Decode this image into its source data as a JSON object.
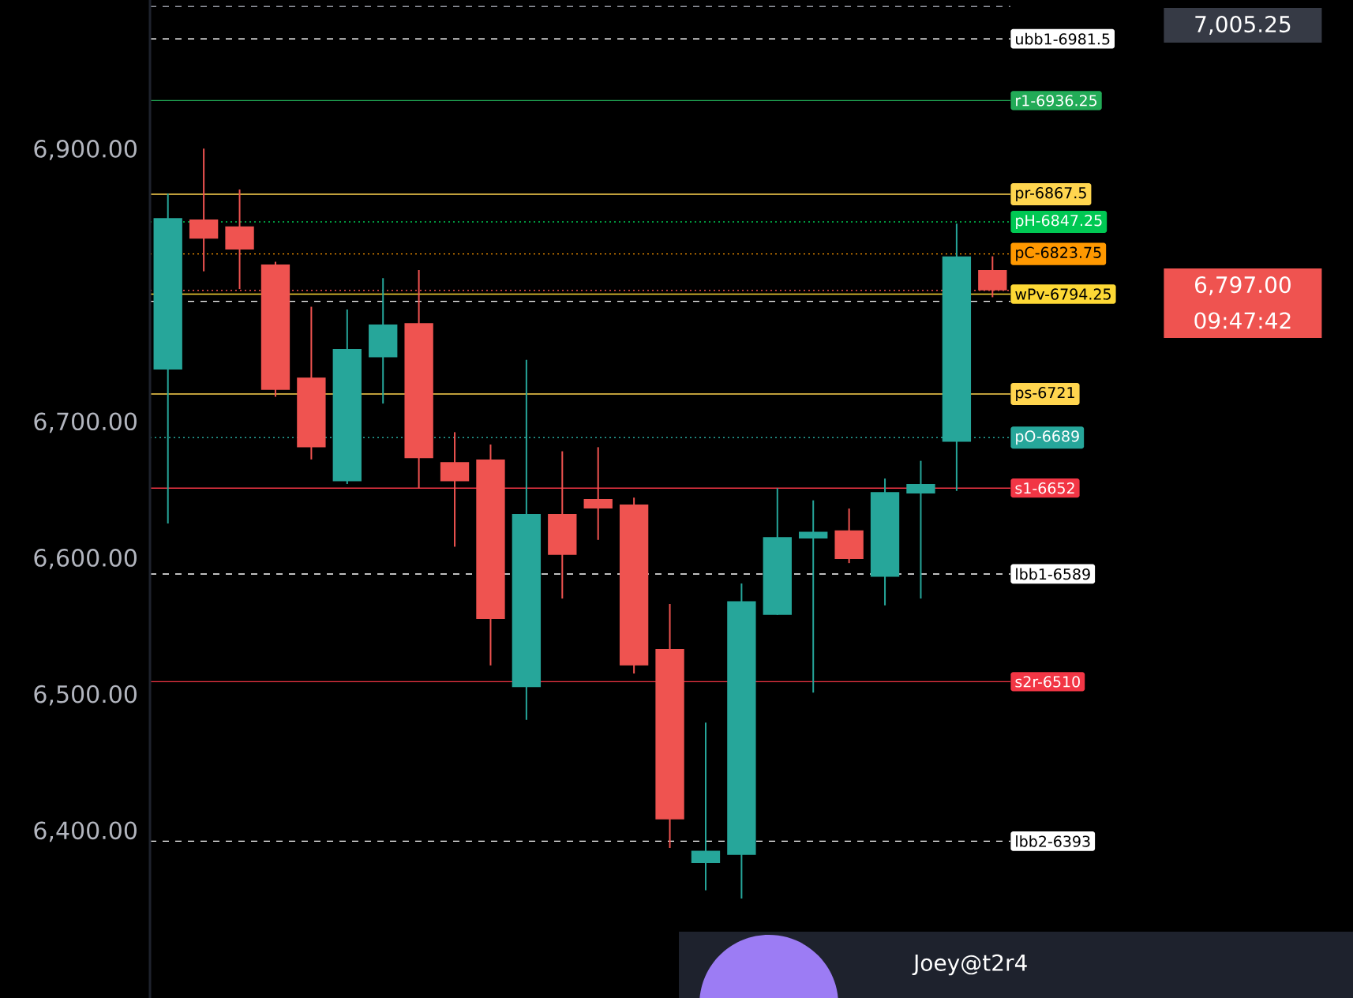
{
  "chart_data": {
    "type": "candlestick",
    "categories": [
      null,
      null,
      null,
      null,
      null,
      null,
      null,
      null,
      null,
      null,
      null,
      null,
      null,
      null,
      null,
      null,
      null,
      null,
      null,
      null,
      null,
      null,
      null,
      null
    ],
    "ohlc": [
      [
        6739,
        6868,
        6626,
        6850
      ],
      [
        6849,
        6901,
        6811,
        6835
      ],
      [
        6844,
        6871,
        6798,
        6827
      ],
      [
        6816,
        6818,
        6719,
        6724
      ],
      [
        6733,
        6785,
        6673,
        6682
      ],
      [
        6657,
        6783,
        6655,
        6754
      ],
      [
        6748,
        6806,
        6714,
        6772
      ],
      [
        6773,
        6812,
        6652,
        6674
      ],
      [
        6671,
        6693,
        6609,
        6657
      ],
      [
        6673,
        6684,
        6522,
        6556
      ],
      [
        6506,
        6746,
        6482,
        6633
      ],
      [
        6633,
        6679,
        6571,
        6603
      ],
      [
        6644,
        6682,
        6614,
        6637
      ],
      [
        6640,
        6645,
        6516,
        6522
      ],
      [
        6534,
        6567,
        6388,
        6409
      ],
      [
        6377,
        6480,
        6357,
        6386
      ],
      [
        6383,
        6582,
        6351,
        6569
      ],
      [
        6559,
        6652,
        6559,
        6616
      ],
      [
        6615,
        6643,
        6502,
        6620
      ],
      [
        6621,
        6637,
        6597,
        6600
      ],
      [
        6587,
        6659,
        6566,
        6649
      ],
      [
        6648,
        6672,
        6571,
        6655
      ],
      [
        6686,
        6846,
        6650,
        6822
      ],
      [
        6812,
        6822,
        6792,
        6797
      ]
    ],
    "colors": [
      "#26a69a",
      "#ef5350",
      "#ef5350",
      "#ef5350",
      "#ef5350",
      "#26a69a",
      "#26a69a",
      "#ef5350",
      "#ef5350",
      "#ef5350",
      "#26a69a",
      "#ef5350",
      "#ef5350",
      "#ef5350",
      "#ef5350",
      "#26a69a",
      "#26a69a",
      "#26a69a",
      "#26a69a",
      "#ef5350",
      "#26a69a",
      "#26a69a",
      "#26a69a",
      "#ef5350"
    ],
    "ylim": [
      6278,
      7010
    ],
    "yticks": [
      {
        "value": 6400,
        "label": "6,400.00"
      },
      {
        "value": 6500,
        "label": "6,500.00"
      },
      {
        "value": 6600,
        "label": "6,600.00"
      },
      {
        "value": 6700,
        "label": "6,700.00"
      },
      {
        "value": 6900,
        "label": "6,900.00"
      }
    ],
    "tick_labels": "y",
    "grid": false,
    "ref_lines": [
      {
        "axis": "y",
        "value": 7005.25,
        "color": "#9598a1",
        "line_style": "dashed"
      },
      {
        "axis": "y",
        "value": 6981.5,
        "label": "ubb1-6981.5",
        "color": "#ffffff",
        "line_style": "dashed"
      },
      {
        "axis": "y",
        "value": 6936.25,
        "label": "r1-6936.25",
        "color": "#22ab57",
        "line_style": "solid"
      },
      {
        "axis": "y",
        "value": 6867.5,
        "label": "pr-6867.5",
        "color": "#ffd54f",
        "line_style": "solid"
      },
      {
        "axis": "y",
        "value": 6847.25,
        "label": "pH-6847.25",
        "color": "#00c853",
        "line_style": "dotted"
      },
      {
        "axis": "y",
        "value": 6823.75,
        "label": "pC-6823.75",
        "color": "#ff9800",
        "line_style": "dotted"
      },
      {
        "axis": "y",
        "value": 6797,
        "color": "#ef5350",
        "line_style": "dotted"
      },
      {
        "axis": "y",
        "value": 6789,
        "color": "#ffffff",
        "line_style": "dashed"
      },
      {
        "axis": "y",
        "value": 6794.25,
        "label": "wPv-6794.25",
        "color": "#fdd835",
        "line_style": "solid"
      },
      {
        "axis": "y",
        "value": 6721,
        "label": "ps-6721",
        "color": "#ffd54f",
        "line_style": "solid"
      },
      {
        "axis": "y",
        "value": 6689,
        "label": "pO-6689",
        "color": "#26a69a",
        "line_style": "dotted"
      },
      {
        "axis": "y",
        "value": 6652,
        "label": "s1-6652",
        "color": "#f23645",
        "line_style": "solid"
      },
      {
        "axis": "y",
        "value": 6589,
        "label": "lbb1-6589",
        "color": "#ffffff",
        "line_style": "dashed"
      },
      {
        "axis": "y",
        "value": 6510,
        "label": "s2r-6510",
        "color": "#f23645",
        "line_style": "solid"
      },
      {
        "axis": "y",
        "value": 6393,
        "label": "lbb2-6393",
        "color": "#ffffff",
        "line_style": "dashed"
      }
    ],
    "annotations": [
      "7,005.25",
      "6,797.00",
      "09:47:42",
      "Joey@t2r4"
    ]
  }
}
